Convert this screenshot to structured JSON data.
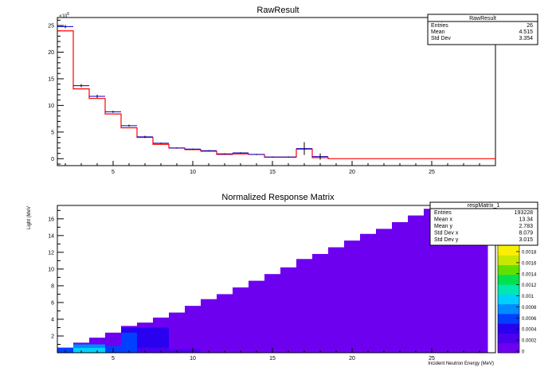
{
  "chart_data": [
    {
      "type": "histogram",
      "title": "RawResult",
      "xlabel": "",
      "ylabel": "",
      "xlim": [
        1.5,
        29
      ],
      "ylim": [
        -1.3,
        26.5
      ],
      "y_exponent_label": "×10",
      "y_exponent_power": "6",
      "x_ticks": [
        5,
        10,
        15,
        20,
        25
      ],
      "y_ticks": [
        0,
        5,
        10,
        15,
        20,
        25
      ],
      "series": [
        {
          "style": "red-line",
          "color": "#ff0000",
          "x": [
            1.5,
            2.5,
            3.5,
            4.5,
            5.5,
            6.5,
            7.5,
            8.5,
            9.5,
            10.5,
            11.5,
            12.5,
            13.5,
            14.5,
            15.5,
            16.5,
            17.5,
            18.5,
            29
          ],
          "values": [
            24.0,
            13.1,
            11.3,
            8.4,
            5.8,
            4.0,
            2.7,
            2.0,
            1.7,
            1.4,
            0.8,
            0.9,
            0.8,
            0.3,
            0.3,
            1.8,
            0.2,
            0.0
          ]
        },
        {
          "style": "blue-markers",
          "color": "#0000cc",
          "x": [
            2.0,
            3.0,
            4.0,
            5.0,
            6.0,
            7.0,
            8.0,
            9.0,
            10.0,
            11.0,
            12.0,
            13.0,
            14.0,
            15.0,
            16.0,
            17.0,
            18.0
          ],
          "values": [
            24.8,
            13.7,
            11.7,
            8.8,
            6.2,
            4.1,
            2.9,
            2.0,
            1.8,
            1.5,
            0.9,
            1.1,
            0.8,
            0.3,
            0.3,
            1.9,
            0.4
          ],
          "errors": [
            0.3,
            0.3,
            0.3,
            0.2,
            0.2,
            0.2,
            0.1,
            0.1,
            0.1,
            0.1,
            0.1,
            0.1,
            0.1,
            0.1,
            0.1,
            1.2,
            0.6
          ]
        }
      ],
      "stats": {
        "title": "RawResult",
        "rows": [
          {
            "label": "Entries",
            "value": "26"
          },
          {
            "label": "Mean",
            "value": "4.515"
          },
          {
            "label": "Std Dev",
            "value": "3.354"
          }
        ]
      }
    },
    {
      "type": "heatmap",
      "title": "Normalized Response Matrix",
      "xlabel": "Incident Neutron Energy (MeV)",
      "ylabel": "Light (MeV",
      "xlim": [
        1.5,
        29
      ],
      "ylim": [
        0,
        17.6
      ],
      "x_ticks": [
        5,
        10,
        15,
        20,
        25
      ],
      "y_ticks": [
        2,
        4,
        6,
        8,
        10,
        12,
        14,
        16
      ],
      "columns_x": [
        1.5,
        2.5,
        3.5,
        4.5,
        5.5,
        6.5,
        7.5,
        8.5,
        9.5,
        10.5,
        11.5,
        12.5,
        13.5,
        14.5,
        15.5,
        16.5,
        17.5,
        18.5,
        19.5,
        20.5,
        21.5,
        22.5,
        23.5,
        24.5,
        25.5,
        26.5,
        27.5,
        28.5
      ],
      "column_heights": [
        0.6,
        1.2,
        1.8,
        2.4,
        3.2,
        3.6,
        4.2,
        4.8,
        5.6,
        6.4,
        7.0,
        7.8,
        8.6,
        9.4,
        10.2,
        11.2,
        11.8,
        12.6,
        13.4,
        14.2,
        14.8,
        15.6,
        16.4,
        17.2,
        17.5,
        17.6,
        17.6
      ],
      "color_scale": {
        "ticks": [
          "0",
          "0.0002",
          "0.0004",
          "0.0006",
          "0.0008",
          "0.001",
          "0.0012",
          "0.0014",
          "0.0016",
          "0.0018"
        ],
        "colors": [
          "#6e00f0",
          "#4c00f0",
          "#2a00f0",
          "#0040ff",
          "#008cff",
          "#00d0ff",
          "#00e8b0",
          "#00e050",
          "#60e000",
          "#c8e800",
          "#f8f000"
        ]
      },
      "stats": {
        "title": "respMatrix_1",
        "rows": [
          {
            "label": "Entries",
            "value": "193228"
          },
          {
            "label": "Mean x",
            "value": "13.34"
          },
          {
            "label": "Mean y",
            "value": "2.783"
          },
          {
            "label": "Std Dev x",
            "value": "8.079"
          },
          {
            "label": "Std Dev y",
            "value": "3.015"
          }
        ]
      }
    }
  ]
}
